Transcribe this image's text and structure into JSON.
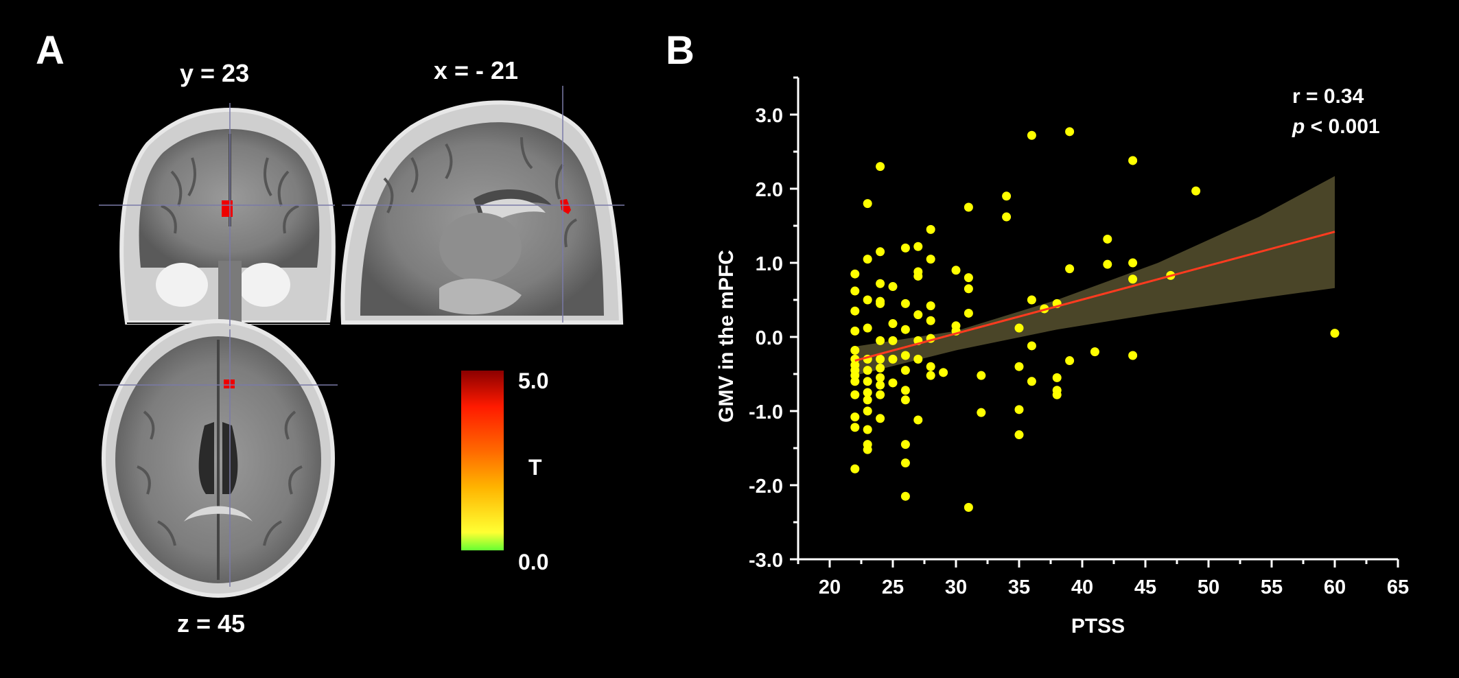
{
  "panel_a": {
    "letter": "A",
    "labels": {
      "coronal": "y = 23",
      "sagittal": "x = - 21",
      "axial": "z = 45"
    },
    "colorbar": {
      "max_label": "5.0",
      "min_label": "0.0",
      "title": "T",
      "colors": [
        "#8b0000",
        "#ff1a00",
        "#ff6a00",
        "#ffb400",
        "#ffff33",
        "#66ff33"
      ]
    }
  },
  "panel_b": {
    "letter": "B"
  },
  "chart_data": {
    "type": "scatter",
    "xlabel": "PTSS",
    "ylabel": "GMV in the mPFC",
    "xlim": [
      17.5,
      65
    ],
    "ylim": [
      -3.0,
      3.5
    ],
    "xticks": [
      20,
      25,
      30,
      35,
      40,
      45,
      50,
      55,
      60,
      65
    ],
    "yticks": [
      -3.0,
      -2.0,
      -1.0,
      0.0,
      1.0,
      2.0,
      3.0
    ],
    "xtick_labels": [
      "20",
      "25",
      "30",
      "35",
      "40",
      "45",
      "50",
      "55",
      "60",
      "65"
    ],
    "ytick_labels": [
      "-3.0",
      "-2.0",
      "-1.0",
      "0.0",
      "1.0",
      "2.0",
      "3.0"
    ],
    "annotation": {
      "r_text": "r = 0.34",
      "p_symbol": "p",
      "p_text": " < 0.001"
    },
    "point_color": "#ffff00",
    "fit_color": "#ff3b1f",
    "band_color": "#4a4528",
    "regression": {
      "x_start": 22,
      "y_start": -0.32,
      "x_end": 60,
      "y_end": 1.42
    },
    "ci_band": {
      "x": [
        22,
        30,
        38,
        46,
        54,
        60
      ],
      "upper": [
        -0.13,
        0.08,
        0.5,
        1.0,
        1.62,
        2.17
      ],
      "lower": [
        -0.52,
        -0.18,
        0.1,
        0.32,
        0.52,
        0.66
      ]
    },
    "points": [
      [
        22,
        0.85
      ],
      [
        22,
        0.62
      ],
      [
        22,
        0.35
      ],
      [
        22,
        0.08
      ],
      [
        22,
        -0.18
      ],
      [
        22,
        -0.3
      ],
      [
        22,
        -0.38
      ],
      [
        22,
        -0.45
      ],
      [
        22,
        -0.52
      ],
      [
        22,
        -0.6
      ],
      [
        22,
        -0.78
      ],
      [
        22,
        -1.08
      ],
      [
        22,
        -1.22
      ],
      [
        22,
        -1.78
      ],
      [
        23,
        1.8
      ],
      [
        23,
        1.05
      ],
      [
        23,
        0.5
      ],
      [
        23,
        0.12
      ],
      [
        23,
        -0.3
      ],
      [
        23,
        -0.45
      ],
      [
        23,
        -0.6
      ],
      [
        23,
        -0.75
      ],
      [
        23,
        -0.85
      ],
      [
        23,
        -1.0
      ],
      [
        23,
        -1.25
      ],
      [
        23,
        -1.45
      ],
      [
        23,
        -1.52
      ],
      [
        24,
        2.3
      ],
      [
        24,
        1.15
      ],
      [
        24,
        0.72
      ],
      [
        24,
        0.45
      ],
      [
        24,
        0.48
      ],
      [
        24,
        -0.05
      ],
      [
        24,
        -0.3
      ],
      [
        24,
        -0.42
      ],
      [
        24,
        -0.55
      ],
      [
        24,
        -0.65
      ],
      [
        24,
        -0.78
      ],
      [
        24,
        -1.1
      ],
      [
        25,
        0.68
      ],
      [
        25,
        0.18
      ],
      [
        25,
        -0.05
      ],
      [
        25,
        -0.3
      ],
      [
        25,
        -0.62
      ],
      [
        26,
        1.2
      ],
      [
        26,
        0.45
      ],
      [
        26,
        0.1
      ],
      [
        26,
        -0.25
      ],
      [
        26,
        -0.45
      ],
      [
        26,
        -0.72
      ],
      [
        26,
        -0.85
      ],
      [
        26,
        -1.45
      ],
      [
        26,
        -1.7
      ],
      [
        26,
        -2.15
      ],
      [
        27,
        1.22
      ],
      [
        27,
        0.88
      ],
      [
        27,
        0.82
      ],
      [
        27,
        0.3
      ],
      [
        27,
        -0.05
      ],
      [
        27,
        -0.3
      ],
      [
        27,
        -1.12
      ],
      [
        28,
        1.45
      ],
      [
        28,
        1.05
      ],
      [
        28,
        0.42
      ],
      [
        28,
        0.22
      ],
      [
        28,
        -0.02
      ],
      [
        28,
        -0.4
      ],
      [
        28,
        -0.52
      ],
      [
        29,
        -0.48
      ],
      [
        30,
        0.9
      ],
      [
        30,
        0.15
      ],
      [
        30,
        0.08
      ],
      [
        31,
        1.75
      ],
      [
        31,
        0.8
      ],
      [
        31,
        0.65
      ],
      [
        31,
        0.32
      ],
      [
        31,
        -2.3
      ],
      [
        32,
        -0.52
      ],
      [
        32,
        -1.02
      ],
      [
        34,
        1.9
      ],
      [
        34,
        1.62
      ],
      [
        35,
        0.12
      ],
      [
        35,
        -0.4
      ],
      [
        35,
        -0.98
      ],
      [
        35,
        -1.32
      ],
      [
        36,
        2.72
      ],
      [
        36,
        0.5
      ],
      [
        36,
        -0.12
      ],
      [
        36,
        -0.6
      ],
      [
        37,
        0.38
      ],
      [
        38,
        0.45
      ],
      [
        38,
        -0.55
      ],
      [
        38,
        -0.72
      ],
      [
        38,
        -0.78
      ],
      [
        39,
        2.77
      ],
      [
        39,
        0.92
      ],
      [
        39,
        -0.32
      ],
      [
        41,
        -0.2
      ],
      [
        42,
        1.32
      ],
      [
        42,
        0.98
      ],
      [
        44,
        2.38
      ],
      [
        44,
        1.0
      ],
      [
        44,
        0.78
      ],
      [
        44,
        -0.25
      ],
      [
        47,
        0.83
      ],
      [
        49,
        1.97
      ],
      [
        60,
        0.05
      ]
    ]
  }
}
